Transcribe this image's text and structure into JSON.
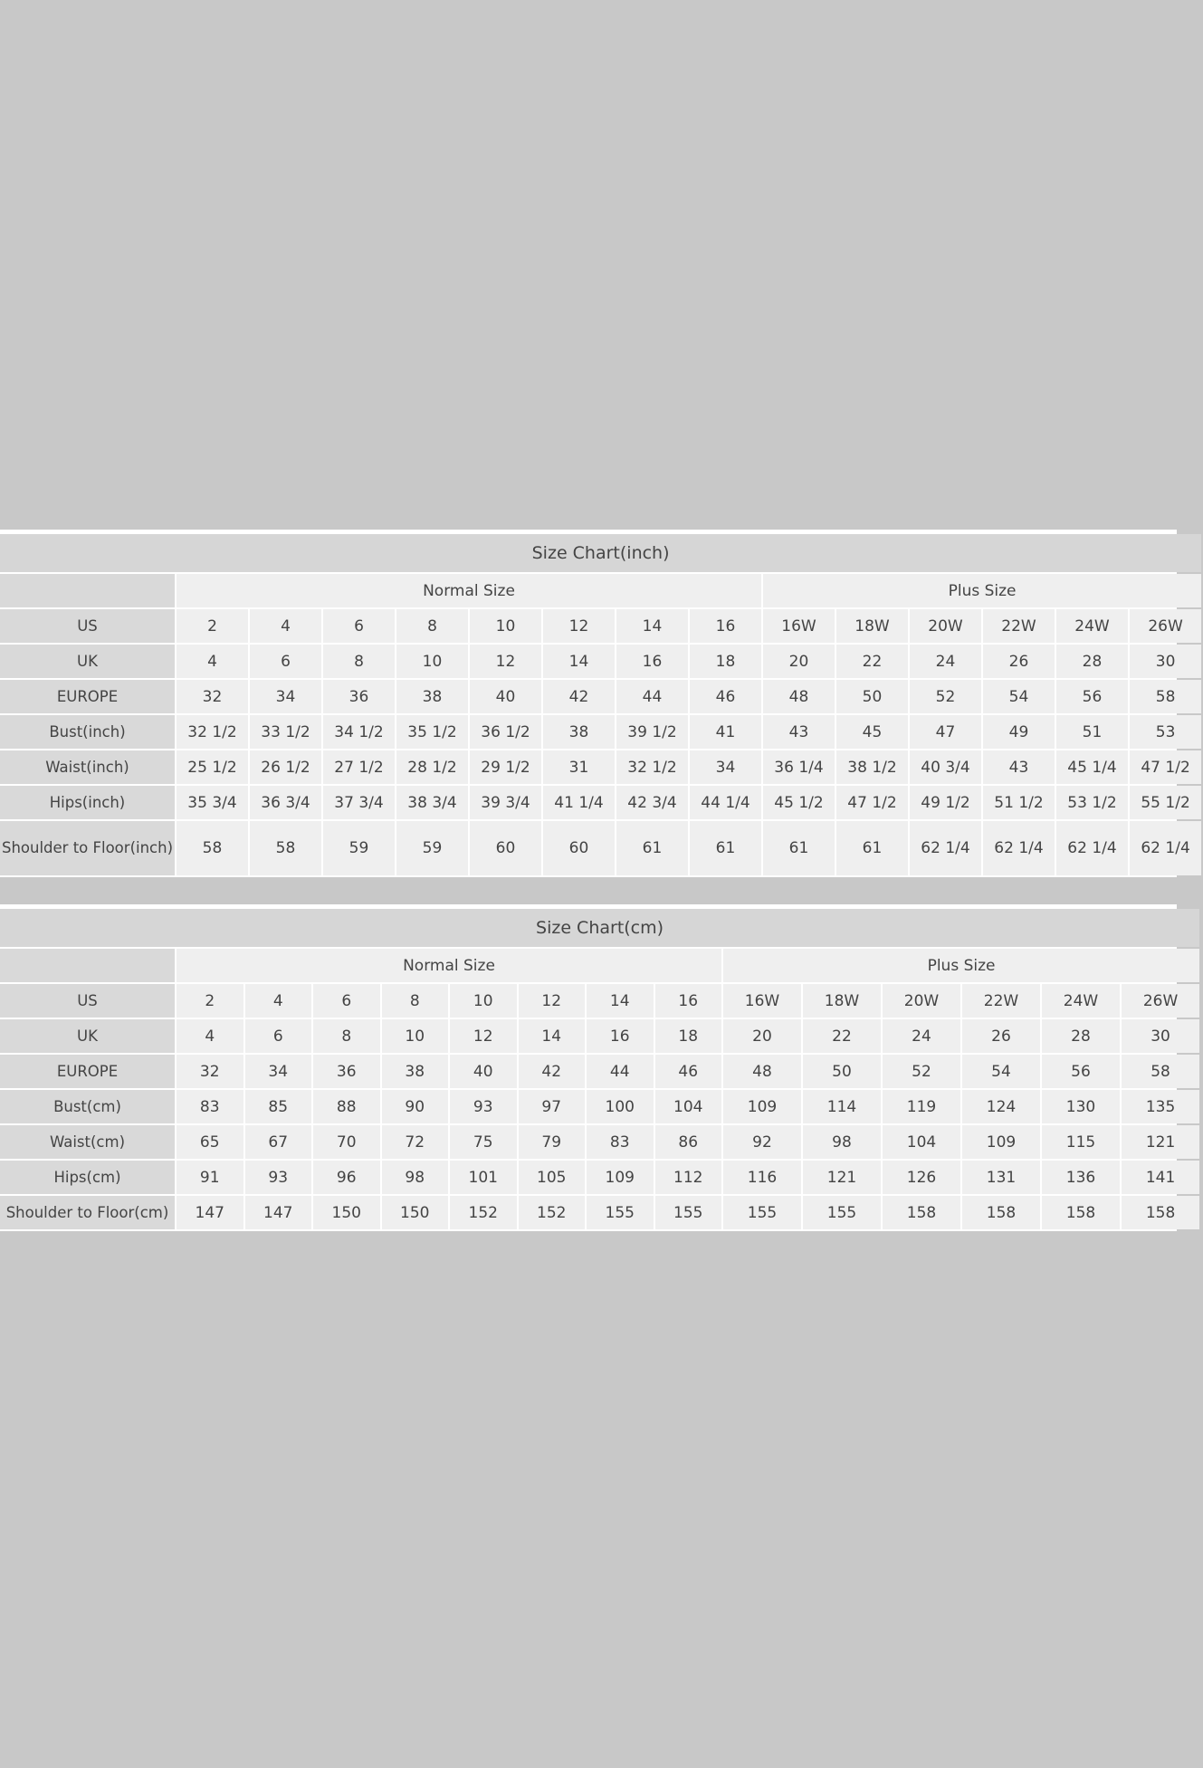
{
  "inch_chart": {
    "title": "Size Chart(inch)",
    "groups": [
      "Normal Size",
      "Plus Size"
    ],
    "rows": [
      {
        "label": "US",
        "values": [
          "2",
          "4",
          "6",
          "8",
          "10",
          "12",
          "14",
          "16",
          "16W",
          "18W",
          "20W",
          "22W",
          "24W",
          "26W"
        ]
      },
      {
        "label": "UK",
        "values": [
          "4",
          "6",
          "8",
          "10",
          "12",
          "14",
          "16",
          "18",
          "20",
          "22",
          "24",
          "26",
          "28",
          "30"
        ]
      },
      {
        "label": "EUROPE",
        "values": [
          "32",
          "34",
          "36",
          "38",
          "40",
          "42",
          "44",
          "46",
          "48",
          "50",
          "52",
          "54",
          "56",
          "58"
        ]
      },
      {
        "label": "Bust(inch)",
        "values": [
          "32 1/2",
          "33 1/2",
          "34 1/2",
          "35 1/2",
          "36 1/2",
          "38",
          "39 1/2",
          "41",
          "43",
          "45",
          "47",
          "49",
          "51",
          "53"
        ]
      },
      {
        "label": "Waist(inch)",
        "values": [
          "25 1/2",
          "26 1/2",
          "27 1/2",
          "28 1/2",
          "29 1/2",
          "31",
          "32 1/2",
          "34",
          "36 1/4",
          "38 1/2",
          "40 3/4",
          "43",
          "45 1/4",
          "47 1/2"
        ]
      },
      {
        "label": "Hips(inch)",
        "values": [
          "35 3/4",
          "36 3/4",
          "37 3/4",
          "38 3/4",
          "39 3/4",
          "41 1/4",
          "42 3/4",
          "44 1/4",
          "45 1/2",
          "47 1/2",
          "49 1/2",
          "51 1/2",
          "53 1/2",
          "55 1/2"
        ]
      },
      {
        "label": "Shoulder to Floor(inch)",
        "values": [
          "58",
          "58",
          "59",
          "59",
          "60",
          "60",
          "61",
          "61",
          "61",
          "61",
          "62 1/4",
          "62 1/4",
          "62 1/4",
          "62 1/4"
        ]
      }
    ]
  },
  "cm_chart": {
    "title": "Size Chart(cm)",
    "groups": [
      "Normal Size",
      "Plus Size"
    ],
    "rows": [
      {
        "label": "US",
        "values": [
          "2",
          "4",
          "6",
          "8",
          "10",
          "12",
          "14",
          "16",
          "16W",
          "18W",
          "20W",
          "22W",
          "24W",
          "26W"
        ]
      },
      {
        "label": "UK",
        "values": [
          "4",
          "6",
          "8",
          "10",
          "12",
          "14",
          "16",
          "18",
          "20",
          "22",
          "24",
          "26",
          "28",
          "30"
        ]
      },
      {
        "label": "EUROPE",
        "values": [
          "32",
          "34",
          "36",
          "38",
          "40",
          "42",
          "44",
          "46",
          "48",
          "50",
          "52",
          "54",
          "56",
          "58"
        ]
      },
      {
        "label": "Bust(cm)",
        "values": [
          "83",
          "85",
          "88",
          "90",
          "93",
          "97",
          "100",
          "104",
          "109",
          "114",
          "119",
          "124",
          "130",
          "135"
        ]
      },
      {
        "label": "Waist(cm)",
        "values": [
          "65",
          "67",
          "70",
          "72",
          "75",
          "79",
          "83",
          "86",
          "92",
          "98",
          "104",
          "109",
          "115",
          "121"
        ]
      },
      {
        "label": "Hips(cm)",
        "values": [
          "91",
          "93",
          "96",
          "98",
          "101",
          "105",
          "109",
          "112",
          "116",
          "121",
          "126",
          "131",
          "136",
          "141"
        ]
      },
      {
        "label": "Shoulder to Floor(cm)",
        "values": [
          "147",
          "147",
          "150",
          "150",
          "152",
          "152",
          "155",
          "155",
          "155",
          "155",
          "158",
          "158",
          "158",
          "158"
        ]
      }
    ]
  },
  "colors": {
    "background": "#c8c8c8",
    "title_bar": "#d6d6d6",
    "label_cell": "#d9d9d9",
    "value_cell": "#efefef",
    "text": "#444444"
  }
}
